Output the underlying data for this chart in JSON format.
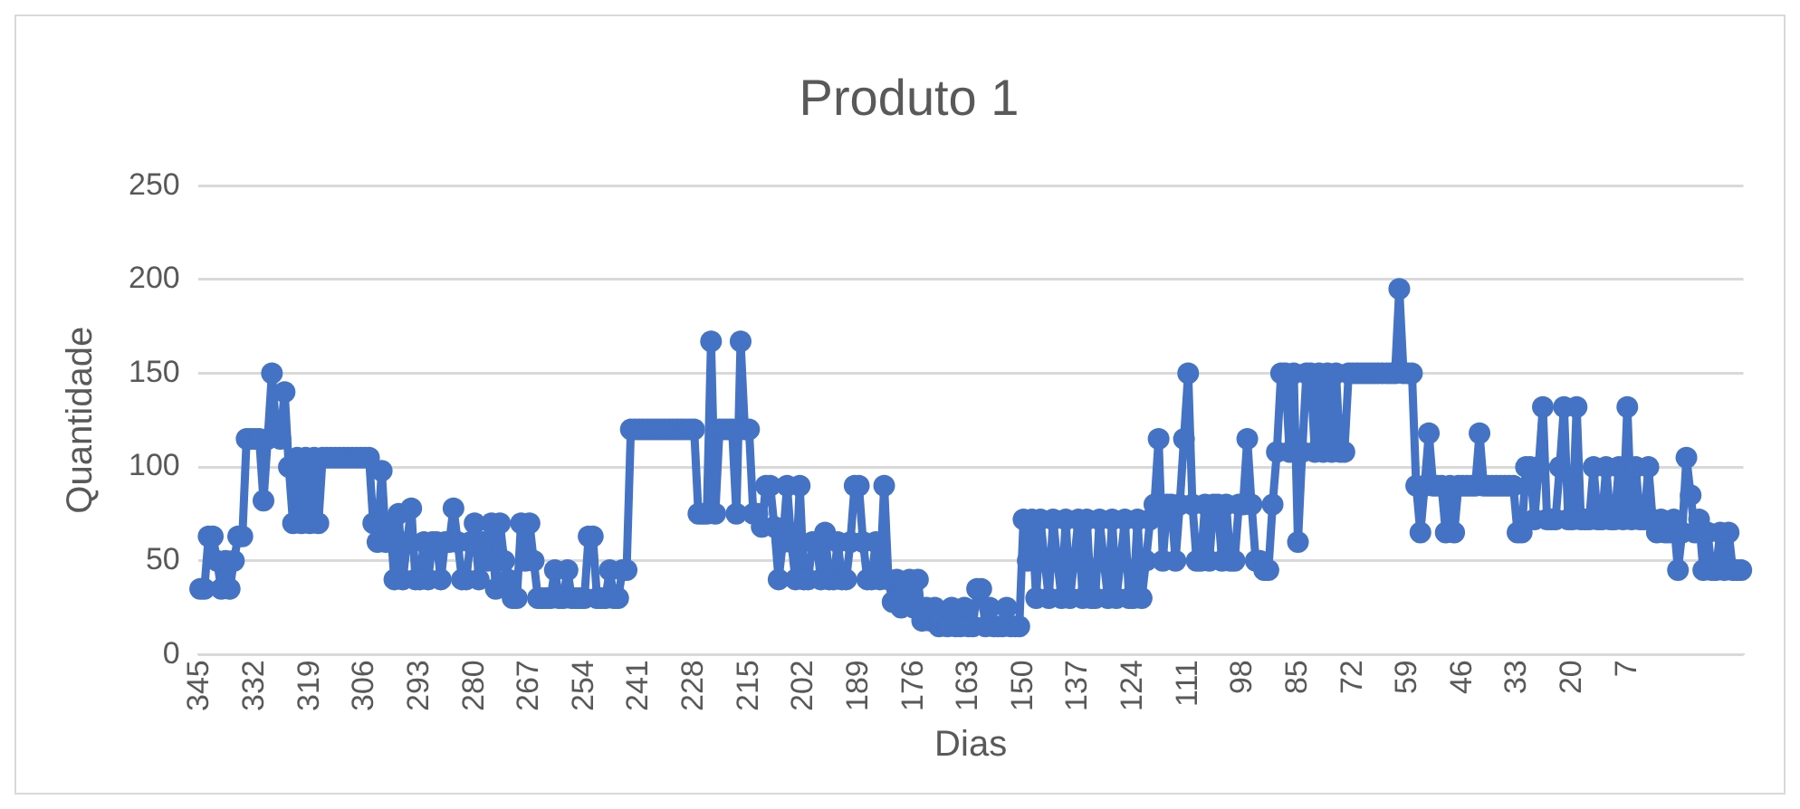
{
  "chart_data": {
    "type": "line",
    "title": "Produto 1",
    "xlabel": "Dias",
    "ylabel": "Quantidade",
    "color": "#4472c4",
    "marker": "circle",
    "line_style": "solid",
    "grid": "y",
    "legend": false,
    "ylim": [
      0,
      250
    ],
    "yticks": [
      0,
      50,
      100,
      150,
      200,
      250
    ],
    "categories": [
      "345",
      null,
      null,
      null,
      null,
      null,
      null,
      null,
      null,
      null,
      null,
      null,
      null,
      "332",
      null,
      null,
      null,
      null,
      null,
      null,
      null,
      null,
      null,
      null,
      null,
      null,
      "319",
      null,
      null,
      null,
      null,
      null,
      null,
      null,
      null,
      null,
      null,
      null,
      null,
      "306",
      null,
      null,
      null,
      null,
      null,
      null,
      null,
      null,
      null,
      null,
      null,
      null,
      "293",
      null,
      null,
      null,
      null,
      null,
      null,
      null,
      null,
      null,
      null,
      null,
      null,
      "280",
      null,
      null,
      null,
      null,
      null,
      null,
      null,
      null,
      null,
      null,
      null,
      null,
      "267",
      null,
      null,
      null,
      null,
      null,
      null,
      null,
      null,
      null,
      null,
      null,
      null,
      "254",
      null,
      null,
      null,
      null,
      null,
      null,
      null,
      null,
      null,
      null,
      null,
      null,
      "241",
      null,
      null,
      null,
      null,
      null,
      null,
      null,
      null,
      null,
      null,
      null,
      null,
      "228",
      null,
      null,
      null,
      null,
      null,
      null,
      null,
      null,
      null,
      null,
      null,
      null,
      "215",
      null,
      null,
      null,
      null,
      null,
      null,
      null,
      null,
      null,
      null,
      null,
      null,
      "202",
      null,
      null,
      null,
      null,
      null,
      null,
      null,
      null,
      null,
      null,
      null,
      null,
      "189",
      null,
      null,
      null,
      null,
      null,
      null,
      null,
      null,
      null,
      null,
      null,
      null,
      "176",
      null,
      null,
      null,
      null,
      null,
      null,
      null,
      null,
      null,
      null,
      null,
      null,
      "163",
      null,
      null,
      null,
      null,
      null,
      null,
      null,
      null,
      null,
      null,
      null,
      null,
      "150",
      null,
      null,
      null,
      null,
      null,
      null,
      null,
      null,
      null,
      null,
      null,
      null,
      "137",
      null,
      null,
      null,
      null,
      null,
      null,
      null,
      null,
      null,
      null,
      null,
      null,
      "124",
      null,
      null,
      null,
      null,
      null,
      null,
      null,
      null,
      null,
      null,
      null,
      null,
      "111",
      null,
      null,
      null,
      null,
      null,
      null,
      null,
      null,
      null,
      null,
      null,
      null,
      "98",
      null,
      null,
      null,
      null,
      null,
      null,
      null,
      null,
      null,
      null,
      null,
      null,
      "85",
      null,
      null,
      null,
      null,
      null,
      null,
      null,
      null,
      null,
      null,
      null,
      null,
      "72",
      null,
      null,
      null,
      null,
      null,
      null,
      null,
      null,
      null,
      null,
      null,
      null,
      "59",
      null,
      null,
      null,
      null,
      null,
      null,
      null,
      null,
      null,
      null,
      null,
      null,
      "46",
      null,
      null,
      null,
      null,
      null,
      null,
      null,
      null,
      null,
      null,
      null,
      null,
      "33",
      null,
      null,
      null,
      null,
      null,
      null,
      null,
      null,
      null,
      null,
      null,
      null,
      "20",
      null,
      null,
      null,
      null,
      null,
      null,
      null,
      null,
      null,
      null,
      null,
      null,
      "7",
      null,
      null,
      null,
      null,
      null,
      null,
      null,
      null,
      null,
      null,
      null,
      null,
      null,
      null,
      null,
      null,
      null,
      null,
      null,
      null,
      null,
      null,
      null,
      null,
      null,
      null,
      null
    ],
    "values": [
      35,
      35,
      63,
      63,
      50,
      35,
      50,
      35,
      50,
      63,
      63,
      115,
      115,
      115,
      115,
      82,
      115,
      150,
      120,
      115,
      140,
      100,
      70,
      105,
      70,
      105,
      70,
      105,
      70,
      105,
      105,
      105,
      105,
      105,
      105,
      105,
      105,
      105,
      105,
      105,
      105,
      70,
      60,
      98,
      60,
      70,
      40,
      75,
      40,
      60,
      78,
      40,
      40,
      60,
      40,
      60,
      60,
      40,
      60,
      60,
      78,
      60,
      40,
      40,
      60,
      70,
      40,
      60,
      50,
      70,
      35,
      70,
      50,
      40,
      30,
      30,
      70,
      50,
      70,
      50,
      30,
      30,
      30,
      30,
      45,
      30,
      30,
      45,
      30,
      30,
      30,
      30,
      63,
      63,
      30,
      30,
      30,
      45,
      30,
      30,
      45,
      45,
      120,
      120,
      120,
      120,
      120,
      120,
      120,
      120,
      120,
      120,
      120,
      120,
      120,
      120,
      120,
      120,
      75,
      75,
      75,
      167,
      75,
      120,
      120,
      120,
      120,
      75,
      167,
      120,
      120,
      75,
      75,
      68,
      90,
      90,
      68,
      40,
      60,
      90,
      60,
      40,
      90,
      40,
      40,
      60,
      60,
      40,
      65,
      40,
      40,
      60,
      40,
      40,
      60,
      90,
      90,
      60,
      40,
      40,
      60,
      40,
      90,
      40,
      28,
      40,
      25,
      35,
      40,
      25,
      40,
      18,
      25,
      18,
      25,
      15,
      18,
      15,
      25,
      15,
      15,
      25,
      15,
      15,
      35,
      35,
      15,
      25,
      15,
      15,
      15,
      25,
      15,
      15,
      15,
      72,
      50,
      72,
      30,
      72,
      50,
      30,
      72,
      50,
      30,
      72,
      30,
      50,
      72,
      30,
      72,
      30,
      30,
      72,
      50,
      30,
      72,
      30,
      50,
      72,
      30,
      30,
      72,
      30,
      50,
      72,
      80,
      115,
      50,
      80,
      80,
      50,
      80,
      115,
      150,
      80,
      50,
      50,
      80,
      50,
      80,
      80,
      50,
      80,
      50,
      50,
      80,
      80,
      115,
      80,
      50,
      50,
      45,
      45,
      80,
      108,
      150,
      150,
      108,
      150,
      60,
      108,
      150,
      150,
      108,
      150,
      108,
      150,
      108,
      150,
      108,
      108,
      150,
      150,
      150,
      150,
      150,
      150,
      150,
      150,
      150,
      150,
      150,
      150,
      195,
      150,
      150,
      150,
      90,
      65,
      90,
      118,
      90,
      90,
      90,
      65,
      90,
      65,
      90,
      90,
      90,
      90,
      90,
      118,
      90,
      90,
      90,
      90,
      90,
      90,
      90,
      90,
      65,
      65,
      100,
      100,
      72,
      100,
      132,
      72,
      72,
      72,
      100,
      132,
      72,
      72,
      132,
      72,
      72,
      72,
      100,
      72,
      72,
      100,
      72,
      72,
      100,
      72,
      132,
      72,
      100,
      72,
      72,
      100,
      72,
      65,
      72,
      65,
      65,
      72,
      45,
      65,
      105,
      85,
      65,
      72,
      45,
      65,
      45,
      45,
      65,
      45,
      65,
      45,
      45,
      45
    ]
  }
}
